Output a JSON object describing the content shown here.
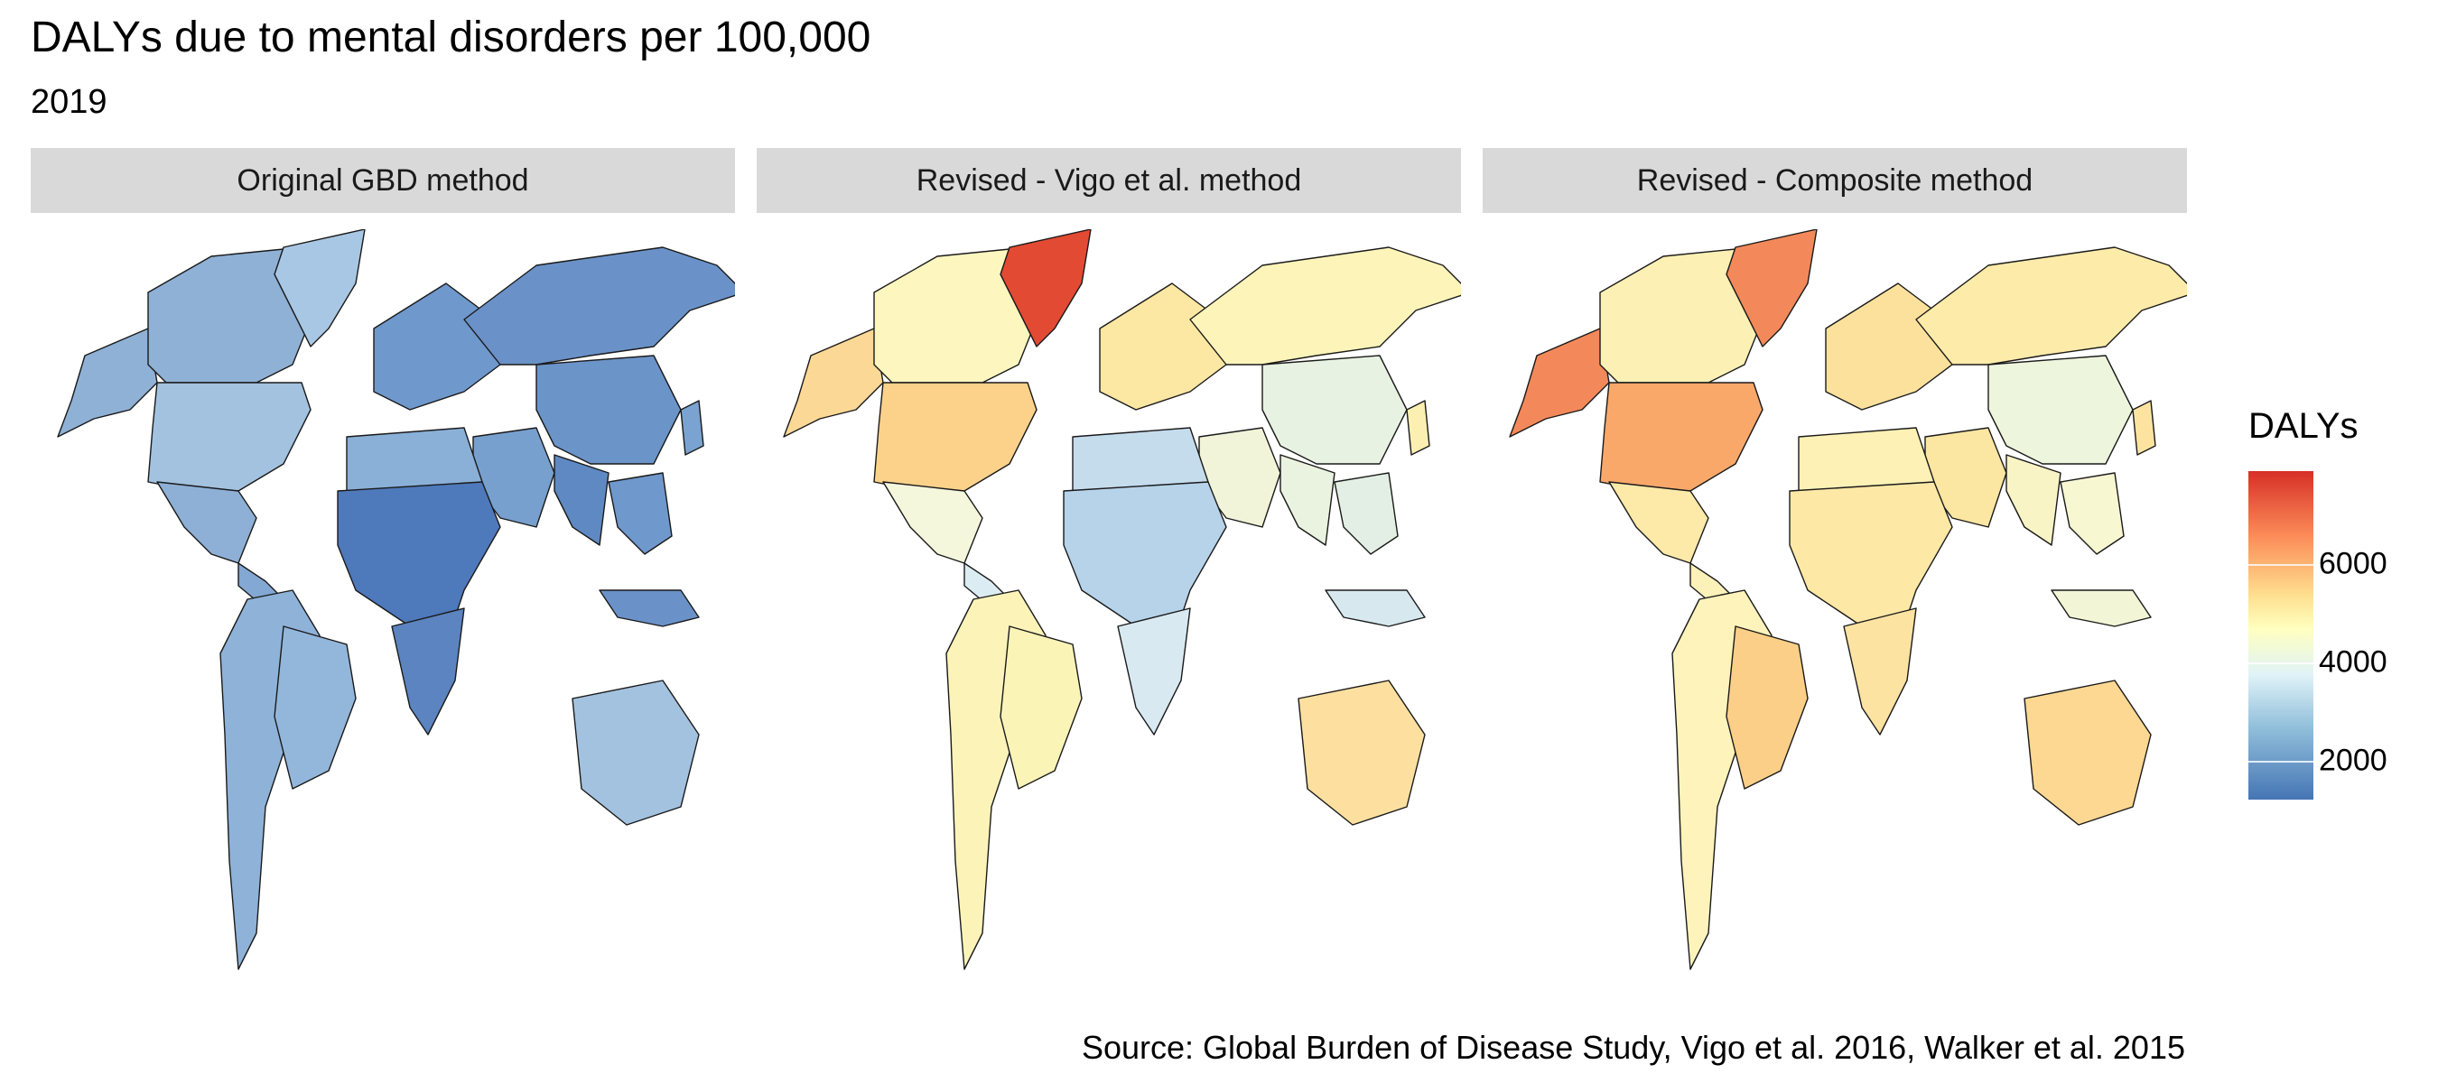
{
  "title": "DALYs due to mental disorders per 100,000",
  "subtitle": "2019",
  "panels": [
    {
      "label": "Original GBD method",
      "fills": {
        "canada": "#8fb1d6",
        "greenland": "#a8c7e4",
        "usa": "#a3c2e0",
        "mexico": "#8eb0d6",
        "centralamerica": "#82a8d3",
        "southamerica": "#8fb2d9",
        "brazil": "#93b6db",
        "europe": "#6f98cc",
        "russia": "#6a92c8",
        "middleeast": "#78a0cf",
        "northafrica": "#8ab0d8",
        "africa": "#4e79bb",
        "southafrica": "#5b84c0",
        "asia": "#6b94c9",
        "india": "#5f89c3",
        "seasia": "#6f98cc",
        "japan": "#7aa3d1",
        "australia": "#a3c2e0",
        "alaska": "#8fb1d6",
        "indonesia": "#6a92c8"
      }
    },
    {
      "label": "Revised - Vigo et al. method",
      "fills": {
        "canada": "#fdf6bf",
        "greenland": "#e34a33",
        "usa": "#fcd28b",
        "mexico": "#f4f7dc",
        "centralamerica": "#dcecf3",
        "southamerica": "#fbf3b8",
        "brazil": "#fbf4b7",
        "europe": "#fce7a3",
        "russia": "#fdf4b9",
        "middleeast": "#f1f4d8",
        "northafrica": "#c5dced",
        "africa": "#b6d3ea",
        "southafrica": "#d8e9f2",
        "asia": "#e8f2e2",
        "india": "#eaf3df",
        "seasia": "#e3efe4",
        "japan": "#fbf0b2",
        "australia": "#fde0a0",
        "alaska": "#fcd896",
        "indonesia": "#d7e8ef"
      }
    },
    {
      "label": "Revised - Composite method",
      "fills": {
        "canada": "#fcf0b4",
        "greenland": "#f3895a",
        "usa": "#f9a86a",
        "mexico": "#fde9a8",
        "centralamerica": "#fbf1b9",
        "southamerica": "#fdf3bb",
        "brazil": "#fbcf87",
        "europe": "#fce19d",
        "russia": "#fdeba9",
        "middleeast": "#fbe6a2",
        "northafrica": "#fdf1b5",
        "africa": "#fde8a5",
        "southafrica": "#fce3a2",
        "asia": "#edf5dc",
        "india": "#f9f4c6",
        "seasia": "#f7f7d2",
        "japan": "#fce4a0",
        "australia": "#fcd892",
        "alaska": "#f3895a",
        "indonesia": "#f2f6d6"
      }
    }
  ],
  "legend": {
    "title": "DALYs",
    "ticks": [
      {
        "label": "2000",
        "value": 2000
      },
      {
        "label": "4000",
        "value": 4000
      },
      {
        "label": "6000",
        "value": 6000
      }
    ],
    "range": [
      1200,
      7900
    ]
  },
  "source": "Source: Global Burden of Disease Study, Vigo et al. 2016, Walker et al. 2015"
}
